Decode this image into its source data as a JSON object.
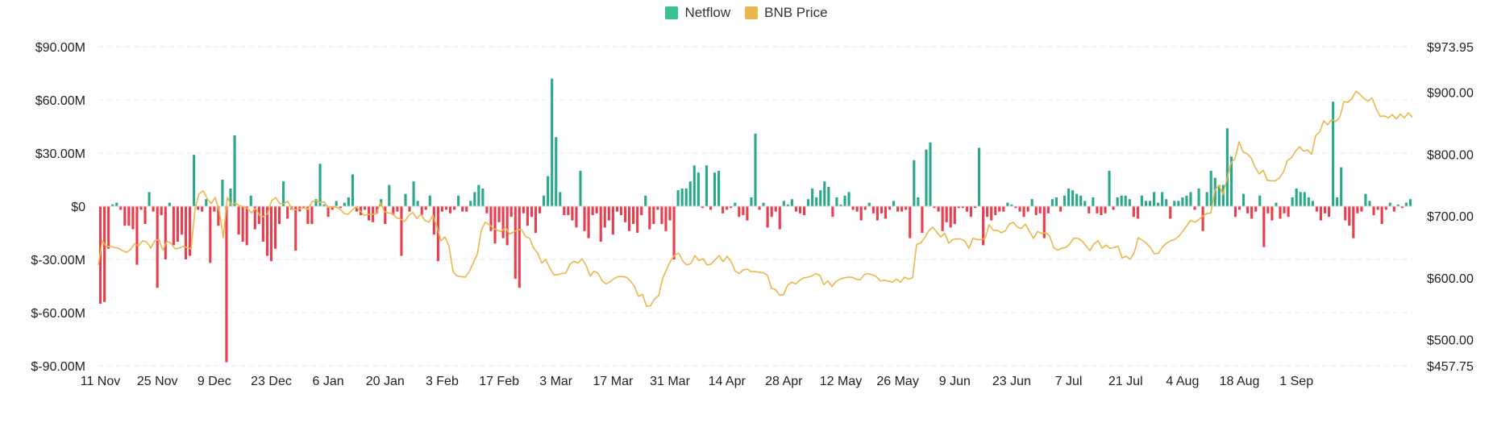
{
  "chart_data": {
    "type": "bar",
    "title": "",
    "xlabel": "",
    "ylabel": "",
    "legend": {
      "position": "top-center",
      "items": [
        {
          "key": "netflow",
          "label": "Netflow",
          "color": "#3dbf8f"
        },
        {
          "key": "price",
          "label": "BNB Price",
          "color": "#e8b84a"
        }
      ]
    },
    "colors": {
      "positive": "#2aa98a",
      "negative": "#ea3d4e",
      "price_line": "#e8b84a"
    },
    "grid": true,
    "date_start": "2024-11-11",
    "x_ticks": [
      "11 Nov",
      "25 Nov",
      "9 Dec",
      "23 Dec",
      "6 Jan",
      "20 Jan",
      "3 Feb",
      "17 Feb",
      "3 Mar",
      "17 Mar",
      "31 Mar",
      "14 Apr",
      "28 Apr",
      "12 May",
      "26 May",
      "9 Jun",
      "23 Jun",
      "7 Jul",
      "21 Jul",
      "4 Aug",
      "18 Aug",
      "1 Sep"
    ],
    "y_left": {
      "ticks": [
        "$90.00M",
        "$60.00M",
        "$30.00M",
        "$0",
        "$-30.00M",
        "$-60.00M",
        "$-90.00M"
      ],
      "values": [
        90,
        60,
        30,
        0,
        -30,
        -60,
        -90
      ],
      "range": [
        -90,
        90
      ]
    },
    "y_right": {
      "ticks": [
        "$973.95",
        "$900.00",
        "$800.00",
        "$700.00",
        "$600.00",
        "$500.00",
        "$457.75"
      ],
      "values": [
        973.95,
        900,
        800,
        700,
        600,
        500,
        457.75
      ],
      "range": [
        457.75,
        973.95
      ]
    },
    "series": [
      {
        "name": "Netflow",
        "type": "bar",
        "unit": "USD millions",
        "values": [
          -55,
          -54,
          -24,
          1,
          2,
          -2,
          -11,
          -11,
          -13,
          -33,
          -2,
          -10,
          8,
          -3,
          -46,
          -5,
          -30,
          2,
          -22,
          -20,
          -16,
          -30,
          -28,
          29,
          -2,
          -3,
          4,
          -32,
          -3,
          -11,
          15,
          -88,
          10,
          40,
          -16,
          -20,
          -22,
          6,
          -13,
          -10,
          -20,
          -28,
          -31,
          -24,
          -10,
          14,
          -7,
          -2,
          -25,
          -3,
          -1,
          -10,
          -10,
          4,
          24,
          1,
          -6,
          -2,
          3,
          -1,
          2,
          5,
          18,
          -3,
          -5,
          -2,
          -8,
          -9,
          -4,
          4,
          -10,
          12,
          -5,
          -3,
          -28,
          7,
          -3,
          14,
          3,
          -5,
          -2,
          6,
          -16,
          -31,
          -3,
          -2,
          -4,
          -2,
          6,
          -3,
          -3,
          3,
          8,
          12,
          10,
          -4,
          -14,
          -21,
          -9,
          -18,
          -22,
          -6,
          -41,
          -46,
          -4,
          -11,
          -6,
          -15,
          -4,
          6,
          17,
          72,
          39,
          8,
          -5,
          -5,
          -8,
          -12,
          20,
          -14,
          -18,
          -5,
          -4,
          -20,
          -12,
          -8,
          -16,
          -3,
          -5,
          -9,
          -14,
          -10,
          -15,
          -5,
          6,
          -13,
          -10,
          -2,
          -10,
          -14,
          -8,
          -30,
          9,
          10,
          10,
          14,
          23,
          19,
          -1,
          23,
          -2,
          19,
          20,
          -4,
          -2,
          -1,
          2,
          -6,
          -5,
          -8,
          5,
          41,
          -2,
          2,
          -12,
          -6,
          -3,
          -13,
          3,
          1,
          4,
          -3,
          -4,
          -5,
          4,
          10,
          5,
          9,
          14,
          11,
          -6,
          5,
          1,
          6,
          8,
          -2,
          -3,
          -8,
          -2,
          2,
          -4,
          -8,
          -4,
          -7,
          -2,
          3,
          -3,
          -3,
          -2,
          -18,
          26,
          5,
          -15,
          32,
          36,
          -1,
          -3,
          -14,
          -9,
          -12,
          -10,
          -1,
          -1,
          -3,
          -6,
          -1,
          33,
          -22,
          -6,
          -8,
          -5,
          -3,
          -3,
          2,
          1,
          -1,
          -3,
          -6,
          -3,
          4,
          -5,
          -4,
          -18,
          -4,
          4,
          5,
          -3,
          6,
          10,
          9,
          7,
          6,
          3,
          -4,
          5,
          -4,
          -5,
          -4,
          20,
          -2,
          5,
          6,
          6,
          4,
          -6,
          -7,
          6,
          3,
          3,
          8,
          2,
          8,
          4,
          -7,
          3,
          3,
          5,
          6,
          8,
          -2,
          10,
          -14,
          8,
          20,
          16,
          12,
          12,
          44,
          28,
          -6,
          -2,
          7,
          -4,
          -7,
          -3,
          6,
          -23,
          -4,
          -8,
          2,
          -7,
          -4,
          -6,
          5,
          10,
          8,
          8,
          5,
          3,
          -3,
          -8,
          -4,
          -6,
          59,
          5,
          22,
          -8,
          -11,
          -18,
          -4,
          -3,
          7,
          3,
          -5,
          -2,
          -10,
          -2,
          2,
          -3,
          1,
          -1,
          2,
          4
        ]
      },
      {
        "name": "BNB Price",
        "type": "line",
        "unit": "USD",
        "values": [
          621,
          660,
          650,
          651,
          649,
          648,
          644,
          641,
          646,
          655,
          652,
          660,
          658,
          648,
          660,
          662,
          645,
          659,
          656,
          647,
          648,
          651,
          649,
          647,
          712,
          736,
          741,
          728,
          720,
          730,
          708,
          665,
          730,
          718,
          721,
          717,
          715,
          712,
          705,
          713,
          701,
          699,
          704,
          725,
          730,
          720,
          720,
          724,
          711,
          710,
          712,
          713,
          711,
          723,
          725,
          722,
          723,
          714,
          715,
          714,
          711,
          704,
          703,
          710,
          715,
          708,
          701,
          703,
          703,
          704,
          722,
          707,
          705,
          704,
          697,
          695,
          691,
          701,
          706,
          696,
          703,
          693,
          690,
          701,
          683,
          660,
          666,
          651,
          610,
          603,
          602,
          601,
          610,
          624,
          638,
          677,
          690,
          686,
          680,
          677,
          675,
          682,
          671,
          674,
          678,
          678,
          667,
          664,
          648,
          640,
          624,
          630,
          616,
          605,
          605,
          607,
          608,
          622,
          627,
          624,
          631,
          620,
          603,
          611,
          607,
          595,
          590,
          594,
          599,
          602,
          602,
          601,
          595,
          586,
          570,
          573,
          554,
          555,
          566,
          571,
          599,
          614,
          628,
          637,
          640,
          627,
          621,
          623,
          636,
          628,
          631,
          621,
          622,
          629,
          636,
          626,
          635,
          626,
          611,
          607,
          613,
          614,
          610,
          610,
          609,
          608,
          604,
          583,
          581,
          572,
          573,
          588,
          593,
          590,
          596,
          600,
          601,
          603,
          607,
          604,
          589,
          595,
          586,
          594,
          598,
          600,
          601,
          601,
          598,
          597,
          605,
          607,
          605,
          602,
          595,
          596,
          595,
          593,
          598,
          593,
          601,
          598,
          600,
          654,
          656,
          665,
          676,
          682,
          674,
          666,
          672,
          656,
          662,
          663,
          663,
          659,
          648,
          664,
          662,
          662,
          664,
          686,
          677,
          677,
          673,
          676,
          687,
          690,
          682,
          680,
          687,
          675,
          664,
          675,
          672,
          673,
          668,
          649,
          645,
          648,
          649,
          655,
          664,
          664,
          660,
          652,
          644,
          655,
          660,
          648,
          653,
          648,
          649,
          651,
          632,
          635,
          630,
          641,
          665,
          661,
          656,
          649,
          639,
          640,
          650,
          656,
          660,
          662,
          667,
          675,
          684,
          693,
          690,
          694,
          700,
          704,
          705,
          742,
          750,
          735,
          760,
          786,
          793,
          820,
          804,
          801,
          794,
          779,
          768,
          774,
          758,
          757,
          757,
          762,
          771,
          790,
          794,
          805,
          812,
          805,
          807,
          800,
          830,
          836,
          854,
          848,
          856,
          853,
          860,
          885,
          884,
          890,
          902,
          897,
          890,
          886,
          891,
          874,
          861,
          862,
          859,
          864,
          857,
          865,
          859,
          867,
          860
        ]
      }
    ]
  }
}
